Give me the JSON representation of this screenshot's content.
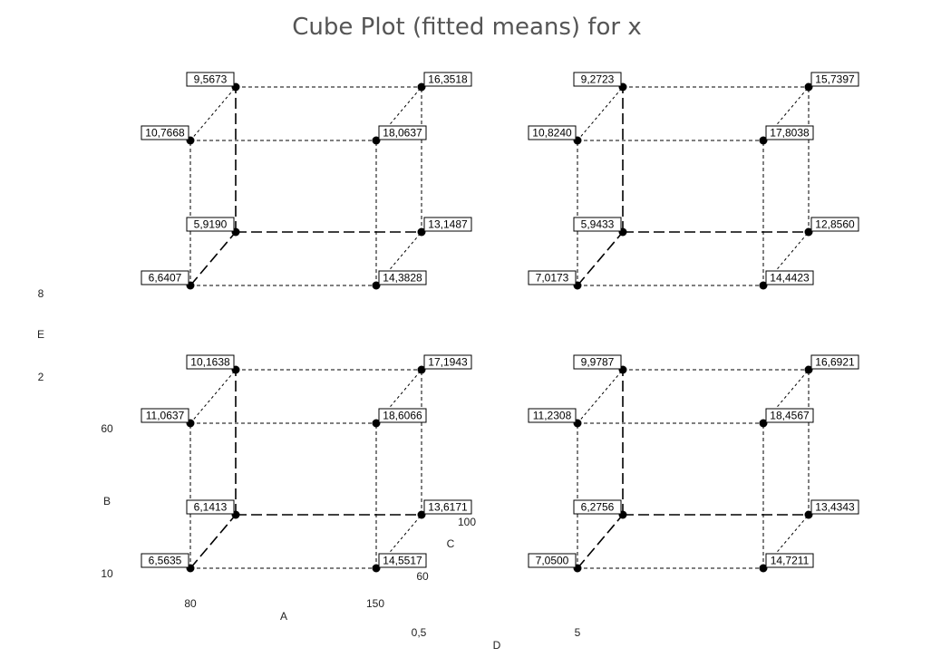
{
  "title": "Cube Plot (fitted means) for x",
  "factors": {
    "A": {
      "label": "A",
      "low": "80",
      "high": "150"
    },
    "B": {
      "label": "B",
      "low": "10",
      "high": "60"
    },
    "C": {
      "label": "C",
      "low": "60",
      "high": "100"
    },
    "D": {
      "label": "D",
      "low": "0,5",
      "high": "5"
    },
    "E": {
      "label": "E",
      "low": "2",
      "high": "8"
    }
  },
  "cubes": [
    {
      "panel": "top-left",
      "values": {
        "front_bottom_left": "6,6407",
        "front_bottom_right": "14,3828",
        "front_top_left": "10,7668",
        "front_top_right": "18,0637",
        "back_bottom_left": "5,9190",
        "back_bottom_right": "13,1487",
        "back_top_left": "9,5673",
        "back_top_right": "16,3518"
      }
    },
    {
      "panel": "top-right",
      "values": {
        "front_bottom_left": "7,0173",
        "front_bottom_right": "14,4423",
        "front_top_left": "10,8240",
        "front_top_right": "17,8038",
        "back_bottom_left": "5,9433",
        "back_bottom_right": "12,8560",
        "back_top_left": "9,2723",
        "back_top_right": "15,7397"
      }
    },
    {
      "panel": "bottom-left",
      "values": {
        "front_bottom_left": "6,5635",
        "front_bottom_right": "14,5517",
        "front_top_left": "11,0637",
        "front_top_right": "18,6066",
        "back_bottom_left": "6,1413",
        "back_bottom_right": "13,6171",
        "back_top_left": "10,1638",
        "back_top_right": "17,1943"
      }
    },
    {
      "panel": "bottom-right",
      "values": {
        "front_bottom_left": "7,0500",
        "front_bottom_right": "14,7211",
        "front_top_left": "11,2308",
        "front_top_right": "18,4567",
        "back_bottom_left": "6,2756",
        "back_bottom_right": "13,4343",
        "back_top_left": "9,9787",
        "back_top_right": "16,6921"
      }
    }
  ]
}
